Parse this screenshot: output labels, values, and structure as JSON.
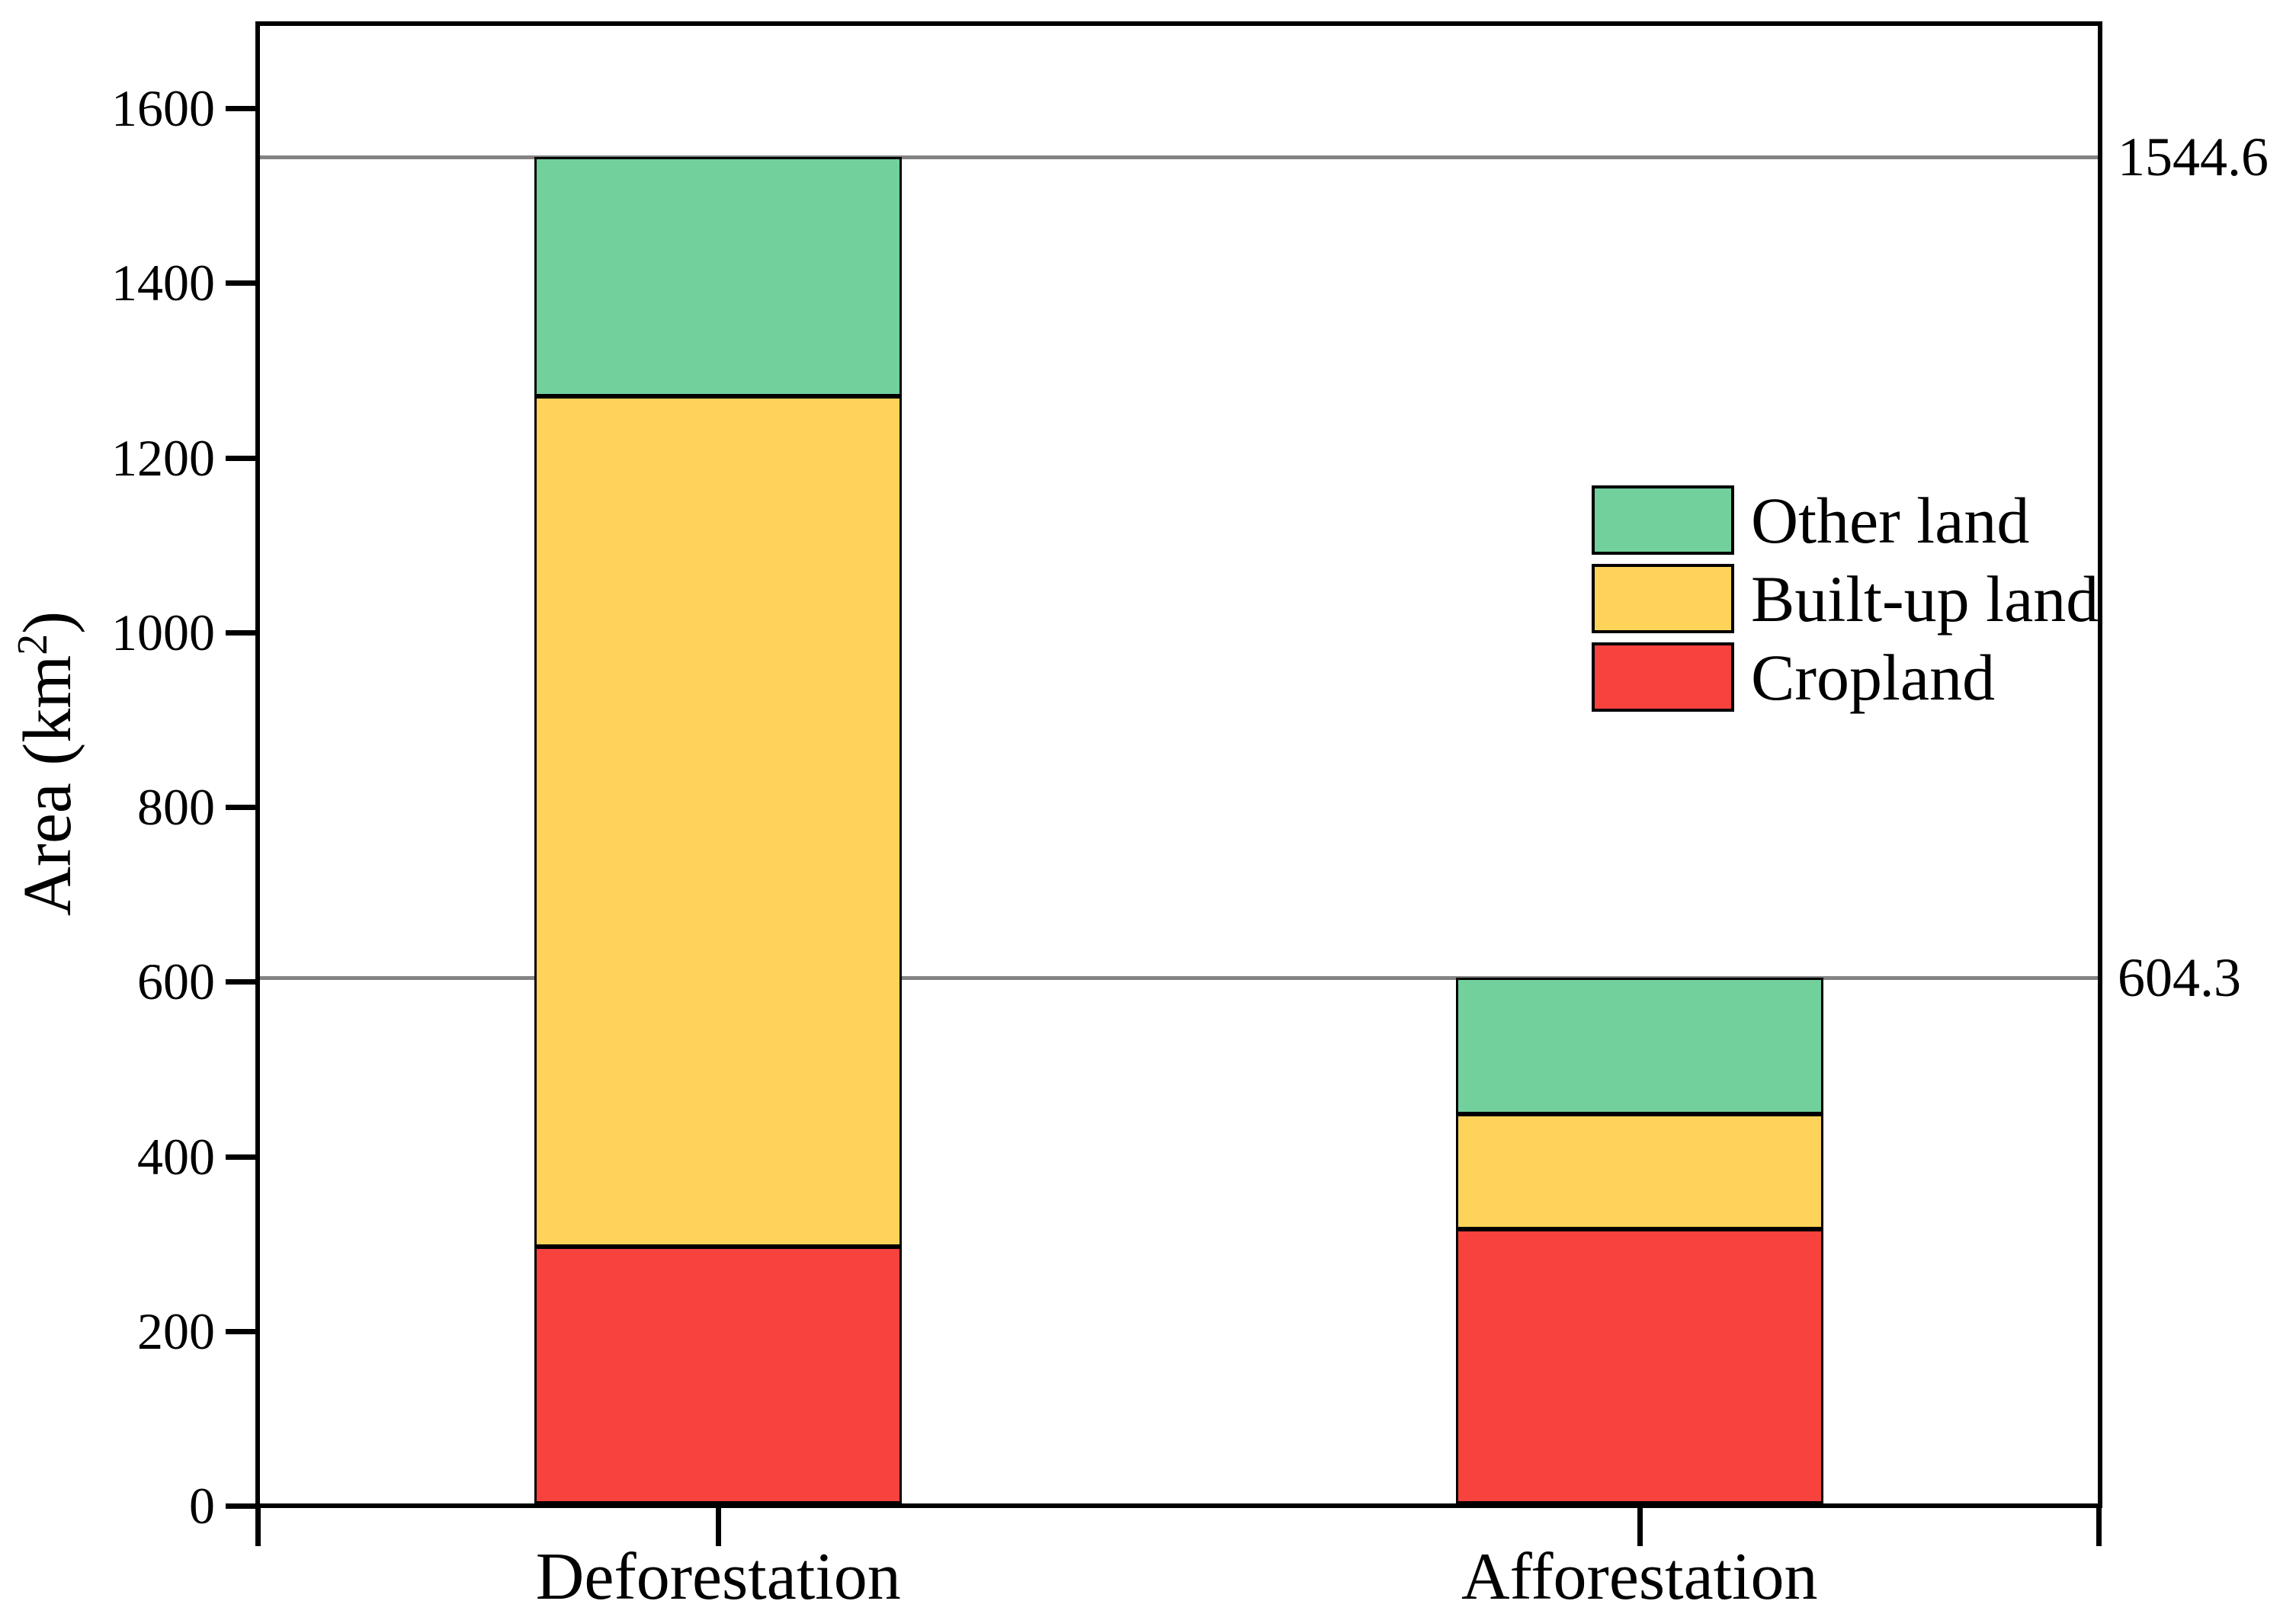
{
  "chart_data": {
    "type": "bar",
    "stacked": true,
    "title": "",
    "xlabel": "",
    "ylabel": {
      "prefix": "Area (km",
      "superscript": "2",
      "suffix": ")"
    },
    "categories": [
      "Deforestation",
      "Afforestation"
    ],
    "series": [
      {
        "name": "Cropland",
        "color": "#f8423e",
        "values": [
          297,
          317
        ]
      },
      {
        "name": "Built-up land",
        "color": "#fdd35a",
        "values": [
          973,
          131.5
        ]
      },
      {
        "name": "Other land",
        "color": "#71d09c",
        "values": [
          274.6,
          155.8
        ]
      }
    ],
    "stack_totals": [
      1544.6,
      604.3
    ],
    "reference_lines": [
      {
        "value": 1544.6,
        "label": "1544.6",
        "color": "#838383"
      },
      {
        "value": 604.3,
        "label": "604.3",
        "color": "#838383"
      }
    ],
    "ylim": [
      0,
      1697
    ],
    "yticks": [
      {
        "value": 0,
        "label": "0"
      },
      {
        "value": 200,
        "label": "200"
      },
      {
        "value": 400,
        "label": "400"
      },
      {
        "value": 600,
        "label": "600"
      },
      {
        "value": 800,
        "label": "800"
      },
      {
        "value": 1000,
        "label": "1000"
      },
      {
        "value": 1200,
        "label": "1200"
      },
      {
        "value": 1400,
        "label": "1400"
      },
      {
        "value": 1600,
        "label": "1600"
      }
    ],
    "legend": {
      "entries": [
        2,
        1,
        0
      ],
      "position": "right-inside"
    },
    "grid": false,
    "axis_color": "#000000",
    "background_color": "#ffffff"
  }
}
